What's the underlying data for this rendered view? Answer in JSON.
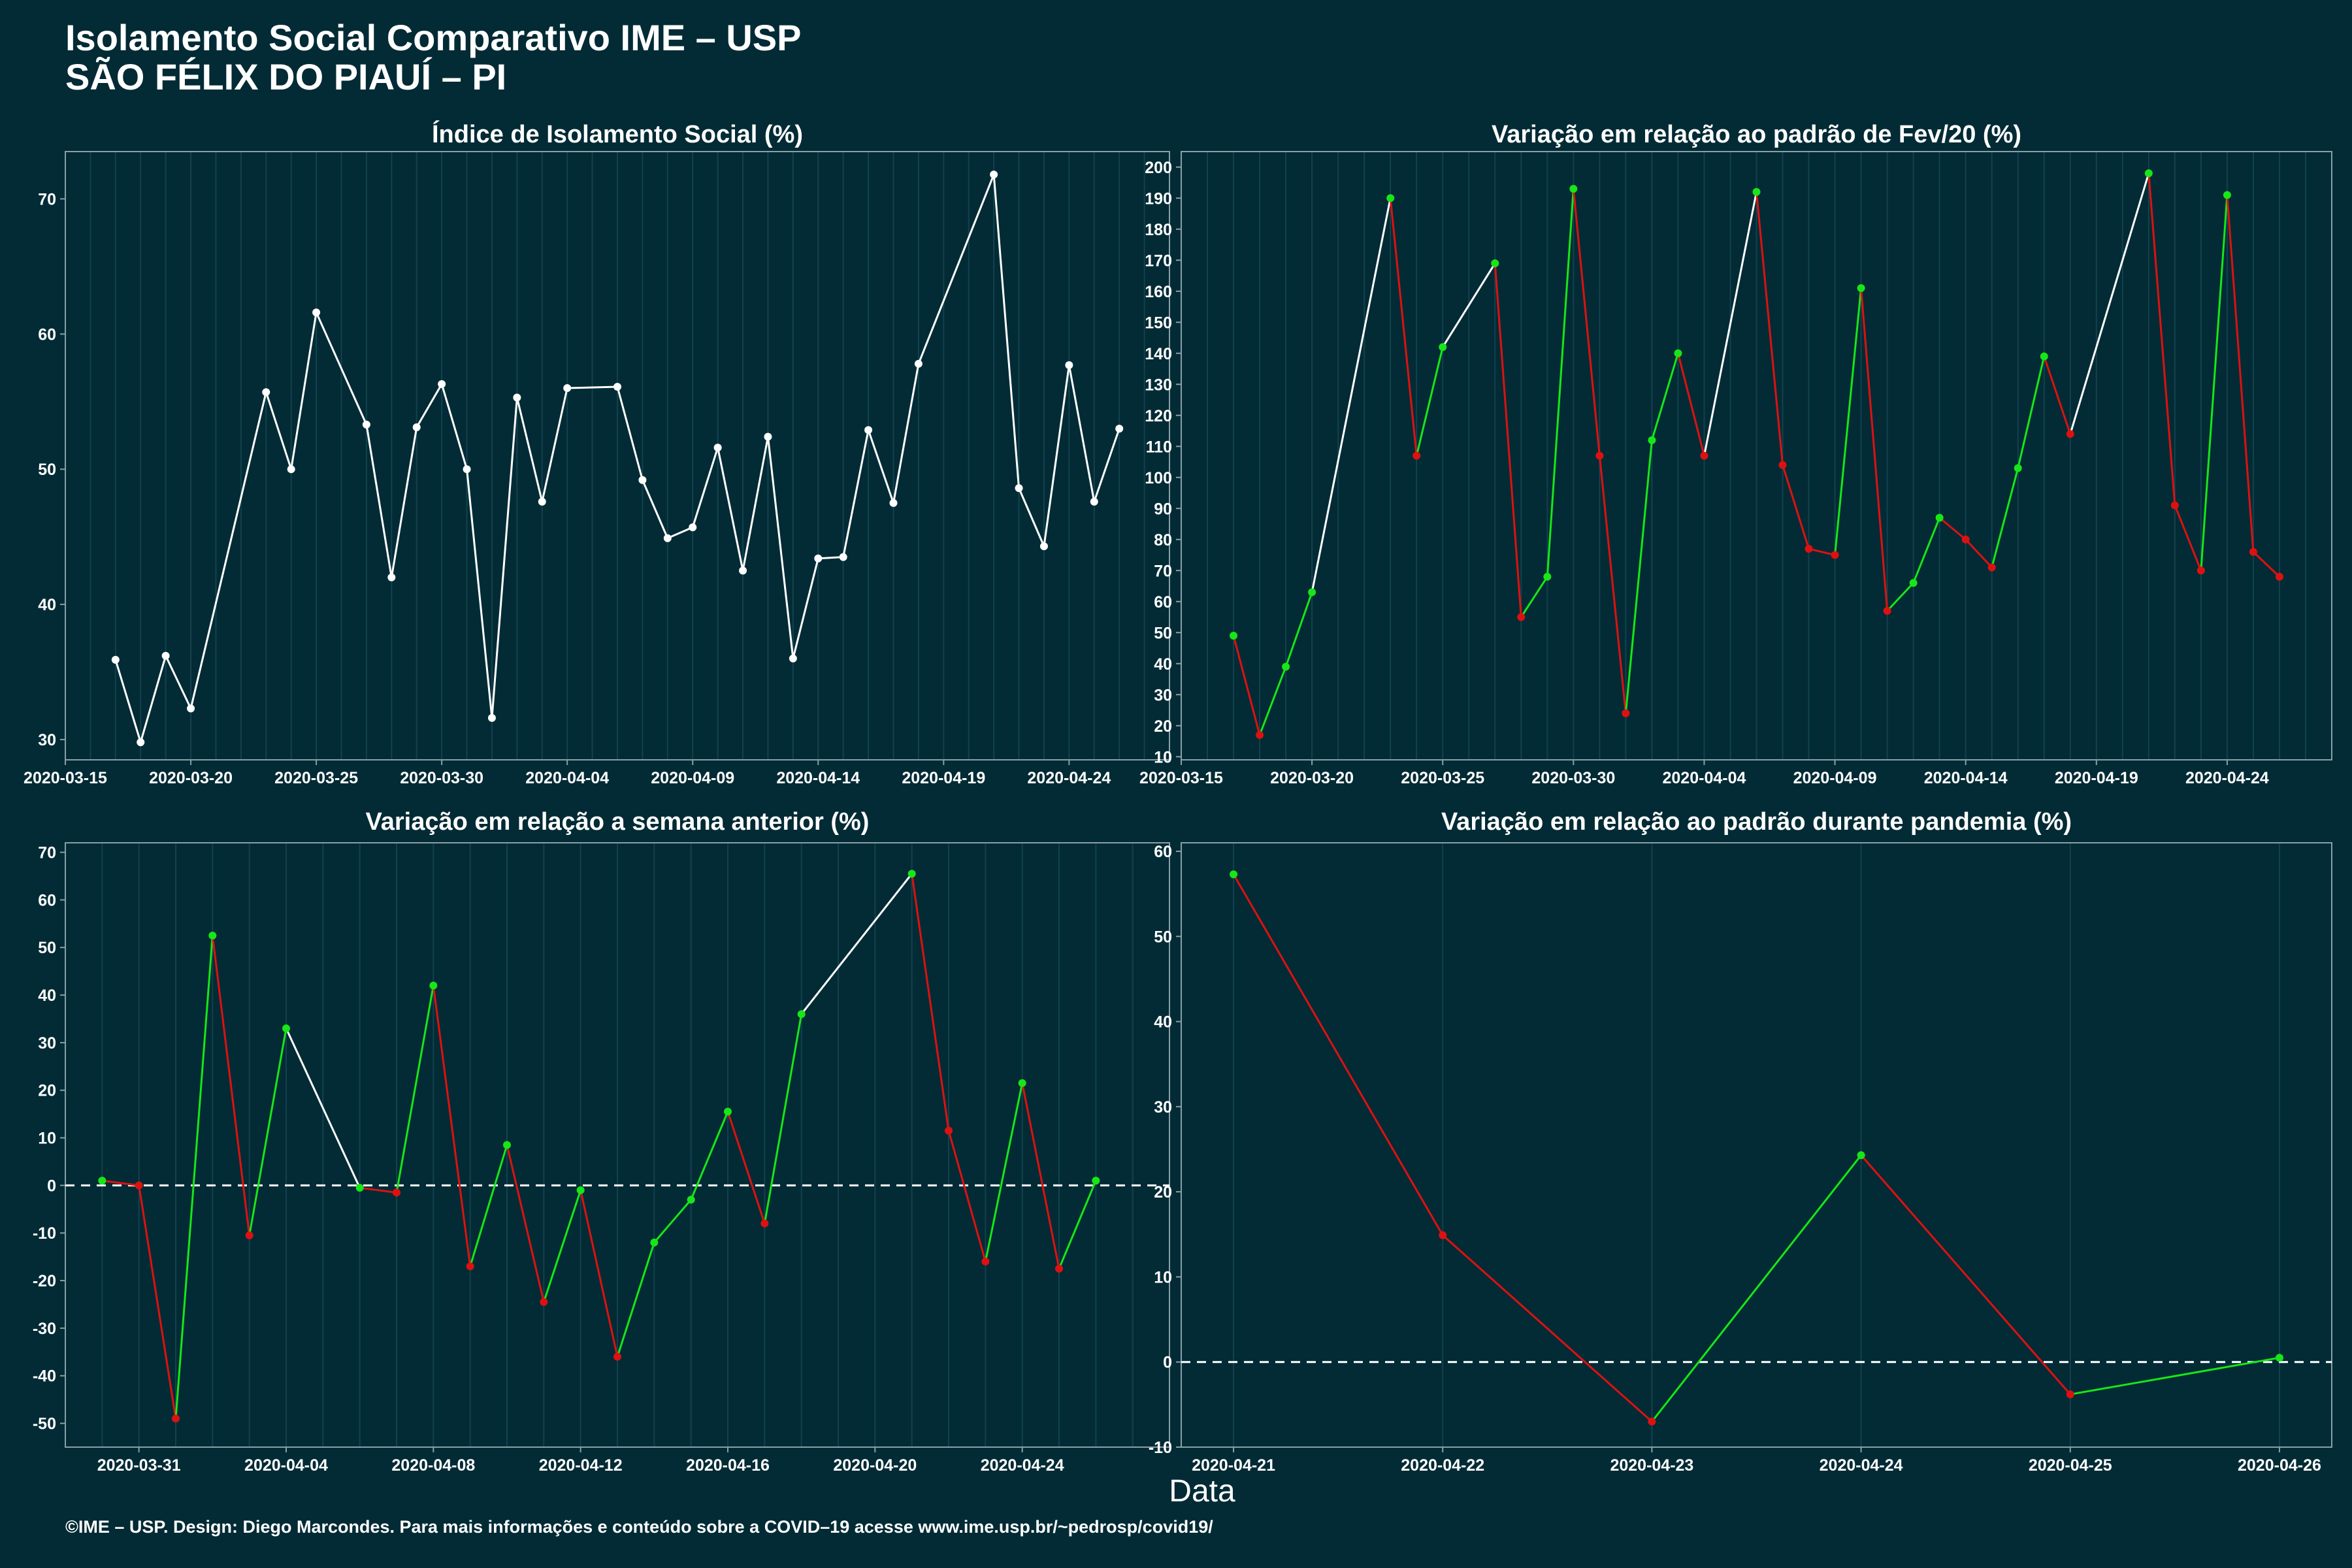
{
  "header": {
    "title_line1": "Isolamento Social Comparativo IME – USP",
    "title_line2": "SÃO FÉLIX DO PIAUÍ – PI"
  },
  "footer": {
    "text": "©IME – USP. Design: Diego Marcondes. Para mais informações e conteúdo sobre a COVID–19 acesse www.ime.usp.br/~pedrosp/covid19/"
  },
  "xlabel": "Data",
  "colors": {
    "background": "#022b35",
    "panel_border": "#8aa0a8",
    "grid": "#12424e",
    "neutral": "#ffffff",
    "up": "#17e617",
    "down": "#dd1111"
  },
  "chart_data": [
    {
      "type": "line",
      "title": "Índice de Isolamento Social (%)",
      "x_type": "date",
      "xlim": [
        "2020-03-15",
        "2020-04-28"
      ],
      "ylim": [
        28.5,
        73.5
      ],
      "xticks": [
        "2020-03-15",
        "2020-03-20",
        "2020-03-25",
        "2020-03-30",
        "2020-04-04",
        "2020-04-09",
        "2020-04-14",
        "2020-04-19",
        "2020-04-24"
      ],
      "yticks": [
        30,
        40,
        50,
        60,
        70
      ],
      "color_mode": "neutral",
      "points": [
        [
          "2020-03-17",
          35.9
        ],
        [
          "2020-03-18",
          29.8
        ],
        [
          "2020-03-19",
          36.2
        ],
        [
          "2020-03-20",
          32.3
        ],
        [
          "2020-03-23",
          55.7
        ],
        [
          "2020-03-24",
          50.0
        ],
        [
          "2020-03-25",
          61.6
        ],
        [
          "2020-03-27",
          53.3
        ],
        [
          "2020-03-28",
          42.0
        ],
        [
          "2020-03-29",
          53.1
        ],
        [
          "2020-03-30",
          56.3
        ],
        [
          "2020-03-31",
          50.0
        ],
        [
          "2020-04-01",
          31.6
        ],
        [
          "2020-04-02",
          55.3
        ],
        [
          "2020-04-03",
          47.6
        ],
        [
          "2020-04-04",
          56.0
        ],
        [
          "2020-04-06",
          56.1
        ],
        [
          "2020-04-07",
          49.2
        ],
        [
          "2020-04-08",
          44.9
        ],
        [
          "2020-04-09",
          45.7
        ],
        [
          "2020-04-10",
          51.6
        ],
        [
          "2020-04-11",
          42.5
        ],
        [
          "2020-04-12",
          52.4
        ],
        [
          "2020-04-13",
          36.0
        ],
        [
          "2020-04-14",
          43.4
        ],
        [
          "2020-04-15",
          43.5
        ],
        [
          "2020-04-16",
          52.9
        ],
        [
          "2020-04-17",
          47.5
        ],
        [
          "2020-04-18",
          57.8
        ],
        [
          "2020-04-21",
          71.8
        ],
        [
          "2020-04-22",
          48.6
        ],
        [
          "2020-04-23",
          44.3
        ],
        [
          "2020-04-24",
          57.7
        ],
        [
          "2020-04-25",
          47.6
        ],
        [
          "2020-04-26",
          53.0
        ]
      ]
    },
    {
      "type": "line",
      "title": "Variação em relação ao padrão de Fev/20 (%)",
      "x_type": "date",
      "xlim": [
        "2020-03-15",
        "2020-04-28"
      ],
      "ylim": [
        9,
        205
      ],
      "xticks": [
        "2020-03-15",
        "2020-03-20",
        "2020-03-25",
        "2020-03-30",
        "2020-04-04",
        "2020-04-09",
        "2020-04-14",
        "2020-04-19",
        "2020-04-24"
      ],
      "yticks": [
        10,
        20,
        30,
        40,
        50,
        60,
        70,
        80,
        90,
        100,
        110,
        120,
        130,
        140,
        150,
        160,
        170,
        180,
        190,
        200
      ],
      "color_mode": "daily",
      "points": [
        [
          "2020-03-17",
          49
        ],
        [
          "2020-03-18",
          17
        ],
        [
          "2020-03-19",
          39
        ],
        [
          "2020-03-20",
          63
        ],
        [
          "2020-03-23",
          190
        ],
        [
          "2020-03-24",
          107
        ],
        [
          "2020-03-25",
          142
        ],
        [
          "2020-03-27",
          169
        ],
        [
          "2020-03-28",
          55
        ],
        [
          "2020-03-29",
          68
        ],
        [
          "2020-03-30",
          193
        ],
        [
          "2020-03-31",
          107
        ],
        [
          "2020-04-01",
          24
        ],
        [
          "2020-04-02",
          112
        ],
        [
          "2020-04-03",
          140
        ],
        [
          "2020-04-04",
          107
        ],
        [
          "2020-04-06",
          192
        ],
        [
          "2020-04-07",
          104
        ],
        [
          "2020-04-08",
          77
        ],
        [
          "2020-04-09",
          75
        ],
        [
          "2020-04-10",
          161
        ],
        [
          "2020-04-11",
          57
        ],
        [
          "2020-04-12",
          66
        ],
        [
          "2020-04-13",
          87
        ],
        [
          "2020-04-14",
          80
        ],
        [
          "2020-04-15",
          71
        ],
        [
          "2020-04-16",
          103
        ],
        [
          "2020-04-17",
          139
        ],
        [
          "2020-04-18",
          114
        ],
        [
          "2020-04-21",
          198
        ],
        [
          "2020-04-22",
          91
        ],
        [
          "2020-04-23",
          70
        ],
        [
          "2020-04-24",
          191
        ],
        [
          "2020-04-25",
          76
        ],
        [
          "2020-04-26",
          68
        ]
      ]
    },
    {
      "type": "line",
      "title": "Variação em relação a semana anterior (%)",
      "x_type": "date",
      "xlim": [
        "2020-03-29",
        "2020-04-28"
      ],
      "ylim": [
        -55,
        72
      ],
      "xticks": [
        "2020-03-31",
        "2020-04-04",
        "2020-04-08",
        "2020-04-12",
        "2020-04-16",
        "2020-04-20",
        "2020-04-24"
      ],
      "yticks": [
        -50,
        -40,
        -30,
        -20,
        -10,
        0,
        10,
        20,
        30,
        40,
        50,
        60,
        70
      ],
      "zero_line": true,
      "color_mode": "daily",
      "points": [
        [
          "2020-03-30",
          1
        ],
        [
          "2020-03-31",
          0
        ],
        [
          "2020-04-01",
          -49
        ],
        [
          "2020-04-02",
          52.5
        ],
        [
          "2020-04-03",
          -10.5
        ],
        [
          "2020-04-04",
          33
        ],
        [
          "2020-04-06",
          -0.5
        ],
        [
          "2020-04-07",
          -1.5
        ],
        [
          "2020-04-08",
          42
        ],
        [
          "2020-04-09",
          -17
        ],
        [
          "2020-04-10",
          8.5
        ],
        [
          "2020-04-11",
          -24.5
        ],
        [
          "2020-04-12",
          -1
        ],
        [
          "2020-04-13",
          -36
        ],
        [
          "2020-04-14",
          -12
        ],
        [
          "2020-04-15",
          -3
        ],
        [
          "2020-04-16",
          15.5
        ],
        [
          "2020-04-17",
          -8
        ],
        [
          "2020-04-18",
          36
        ],
        [
          "2020-04-21",
          65.5
        ],
        [
          "2020-04-22",
          11.5
        ],
        [
          "2020-04-23",
          -16
        ],
        [
          "2020-04-24",
          21.5
        ],
        [
          "2020-04-25",
          -17.5
        ],
        [
          "2020-04-26",
          1
        ]
      ]
    },
    {
      "type": "line",
      "title": "Variação em relação ao padrão durante pandemia (%)",
      "x_type": "date",
      "xlim": [
        "2020-04-20.75",
        "2020-04-26.25"
      ],
      "ylim": [
        -10,
        61
      ],
      "xticks": [
        "2020-04-21",
        "2020-04-22",
        "2020-04-23",
        "2020-04-24",
        "2020-04-25",
        "2020-04-26"
      ],
      "yticks": [
        -10,
        0,
        10,
        20,
        30,
        40,
        50,
        60
      ],
      "zero_line": true,
      "color_mode": "daily",
      "points": [
        [
          "2020-04-21",
          57.3
        ],
        [
          "2020-04-22",
          14.9
        ],
        [
          "2020-04-23",
          -7
        ],
        [
          "2020-04-24",
          24.3
        ],
        [
          "2020-04-25",
          -3.8
        ],
        [
          "2020-04-26",
          0.5
        ]
      ]
    }
  ]
}
